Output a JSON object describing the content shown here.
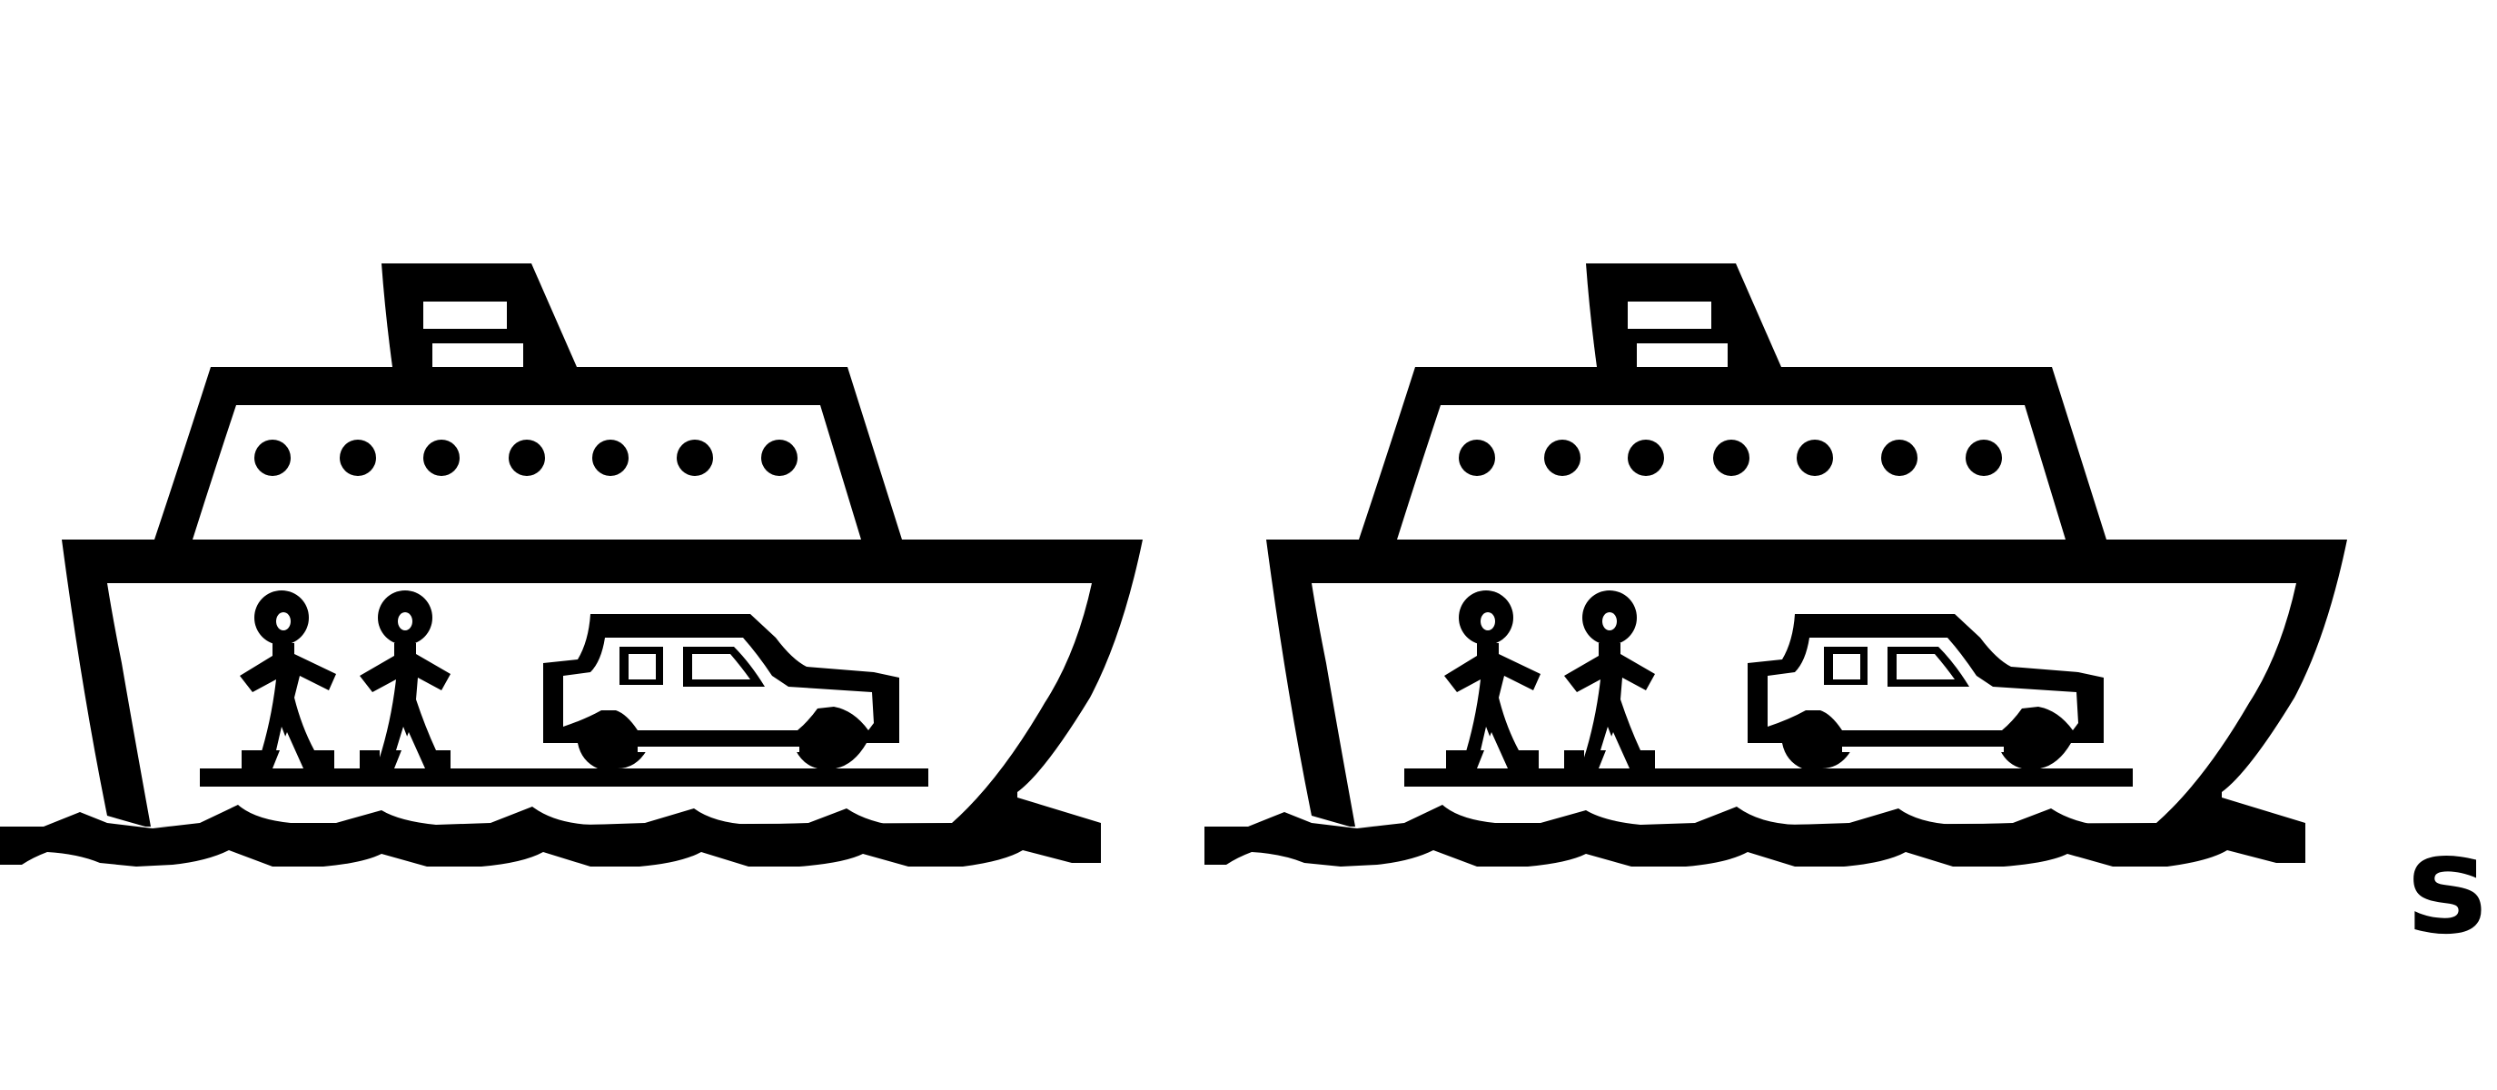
{
  "pictogram": {
    "icon": "ferry-pictogram",
    "count": 2,
    "ink_color": "#000000",
    "background_color": "#ffffff",
    "suffix_letter": "s"
  }
}
